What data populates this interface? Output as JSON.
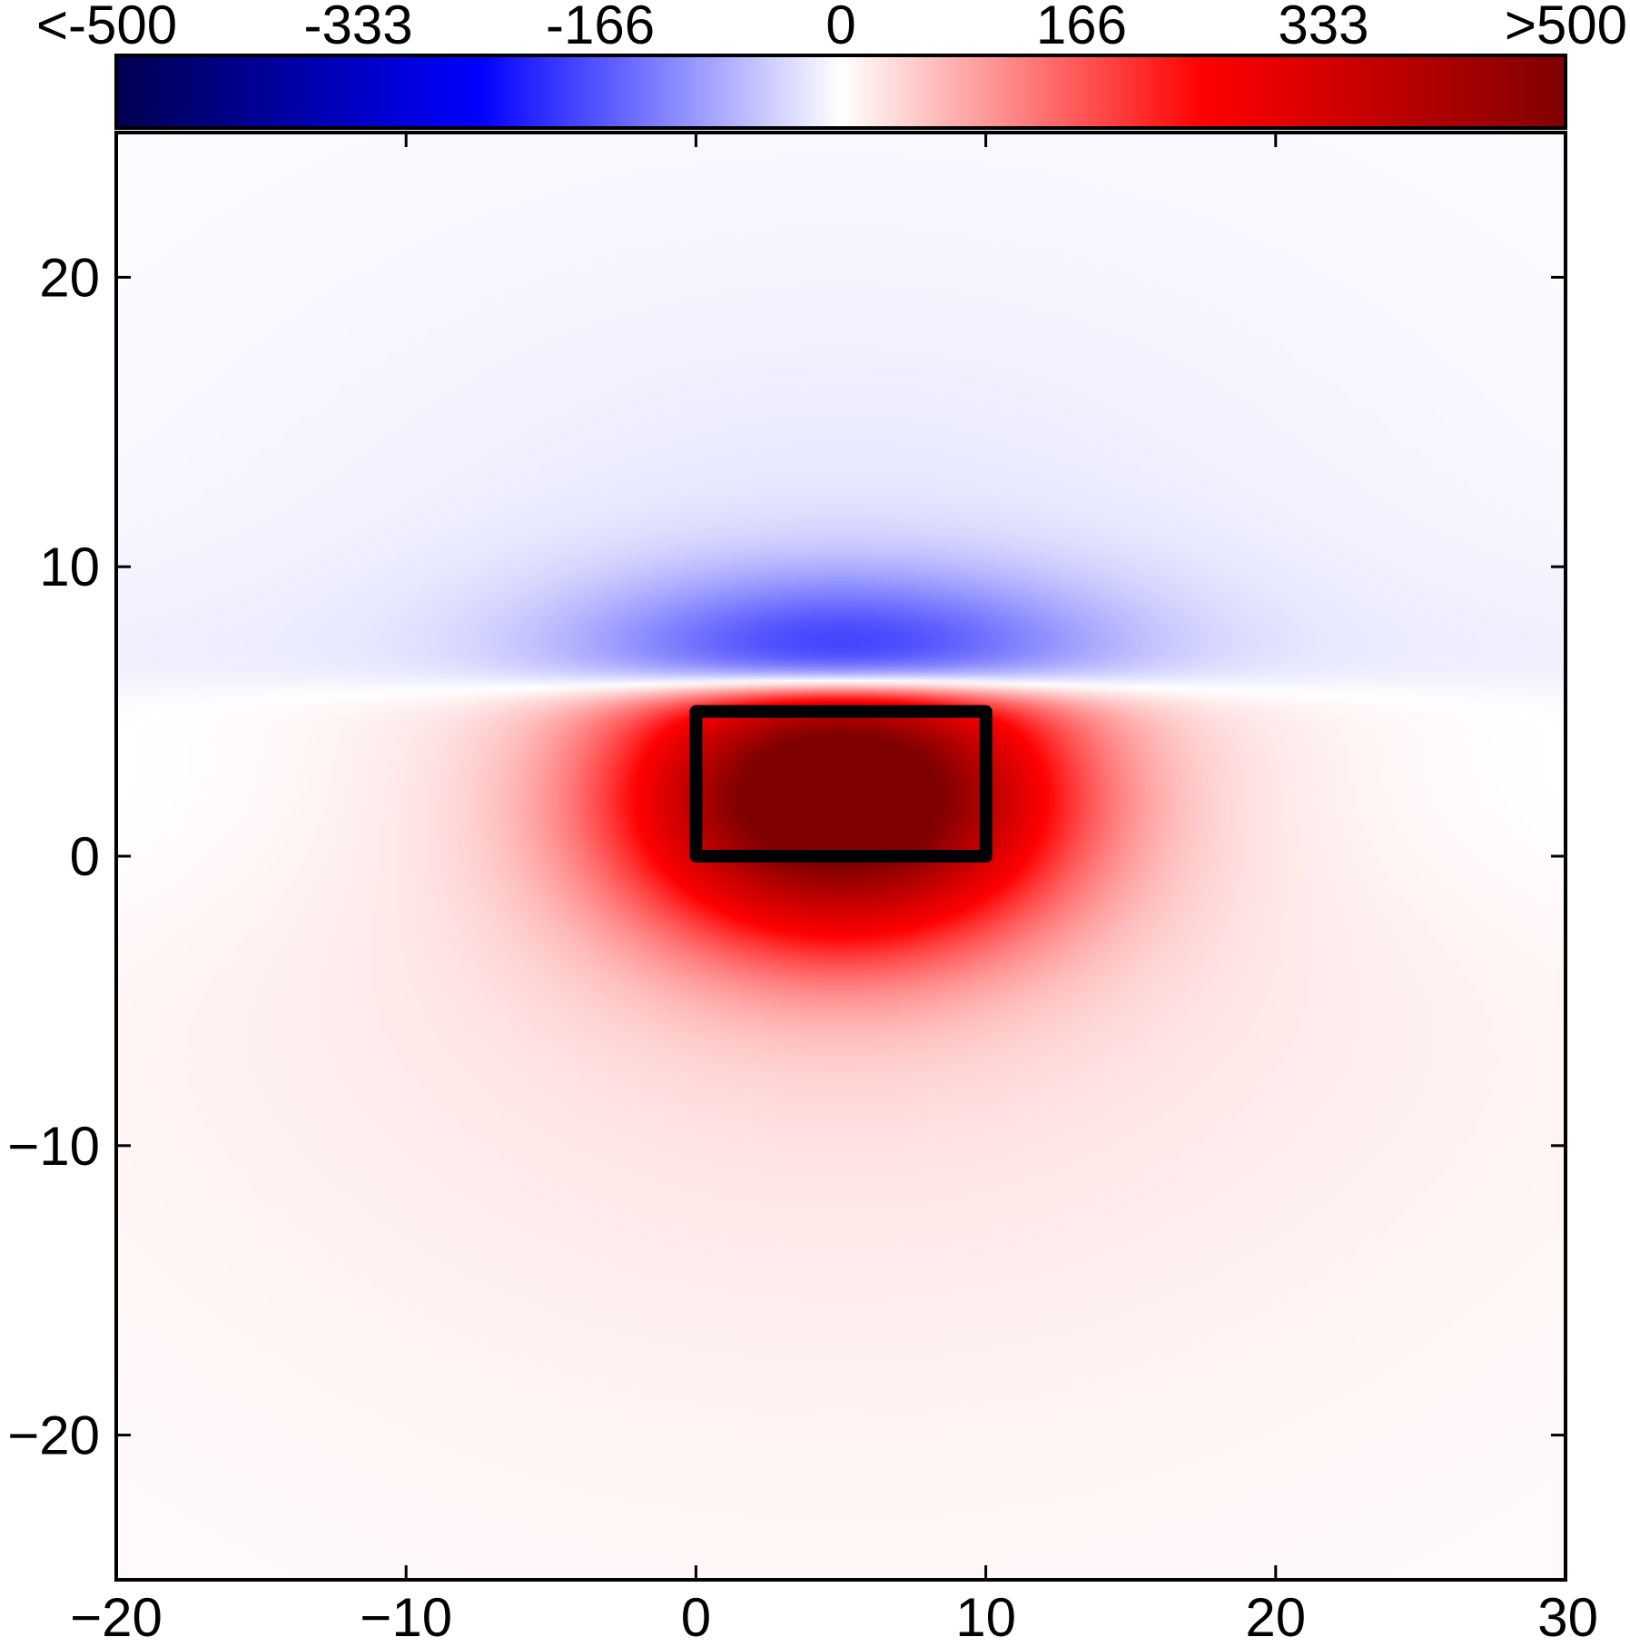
{
  "chart_data": {
    "type": "heatmap",
    "title": "",
    "xlabel": "",
    "ylabel": "",
    "xlim": [
      -20,
      30
    ],
    "ylim": [
      -25,
      25
    ],
    "x_ticks": [
      -20,
      -10,
      0,
      10,
      20,
      30
    ],
    "y_ticks": [
      -20,
      -10,
      0,
      10,
      20
    ],
    "x_tick_labels": [
      "−20",
      "−10",
      "0",
      "10",
      "20",
      "30"
    ],
    "y_tick_labels": [
      "−20",
      "−10",
      "0",
      "10",
      "20"
    ],
    "grid": false,
    "colorbar": {
      "placement": "top",
      "min": -500,
      "max": 500,
      "tick_values": [
        -500,
        -333,
        -166,
        0,
        166,
        333,
        500
      ],
      "tick_labels": [
        "<-500",
        "-333",
        "-166",
        "0",
        "166",
        "333",
        ">500"
      ],
      "colors": [
        "#000050",
        "#0000ff",
        "#ffffff",
        "#ff0000",
        "#800000"
      ]
    },
    "annotations": [
      {
        "type": "rectangle",
        "x0": 0,
        "x1": 10,
        "y0": 0,
        "y1": 5,
        "stroke": "#000000"
      }
    ],
    "field_features": {
      "positive_peak": {
        "x": 5,
        "y": 3.5,
        "value": 500
      },
      "negative_lobe": {
        "x": 5,
        "y": 7,
        "value": -170
      },
      "zero_line_y": 5.8
    }
  }
}
